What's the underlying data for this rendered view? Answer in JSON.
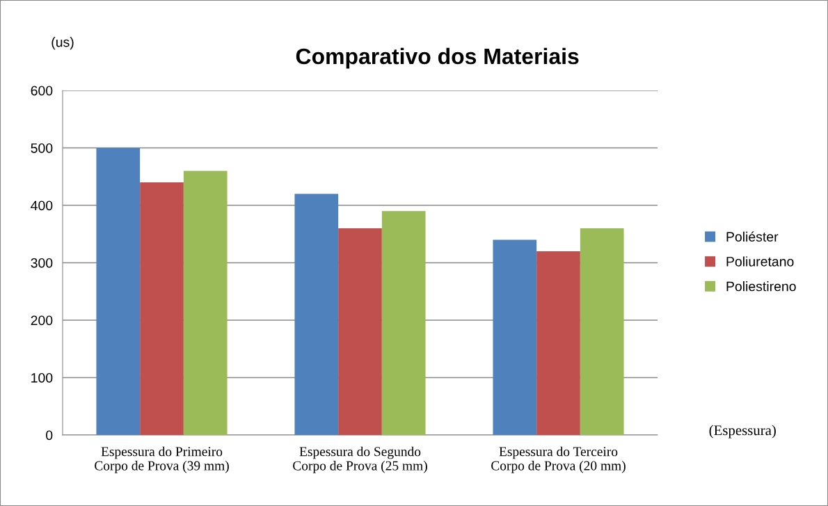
{
  "chart_data": {
    "type": "bar",
    "title": "Comparativo dos Materiais",
    "ylabel": "(us)",
    "xlabel": "(Espessura)",
    "categories": [
      "Espessura do Primeiro\nCorpo de Prova (39 mm)",
      "Espessura do Segundo\nCorpo de Prova (25 mm)",
      "Espessura do Terceiro\nCorpo de Prova (20 mm)"
    ],
    "series": [
      {
        "name": "Poliéster",
        "color": "#4f81bd",
        "values": [
          500,
          420,
          340
        ]
      },
      {
        "name": "Poliuretano",
        "color": "#c0504d",
        "values": [
          440,
          360,
          320
        ]
      },
      {
        "name": "Poliestireno",
        "color": "#9bbb59",
        "values": [
          460,
          390,
          360
        ]
      }
    ],
    "ylim": [
      0,
      600
    ],
    "yticks": [
      0,
      100,
      200,
      300,
      400,
      500,
      600
    ],
    "grid": "y",
    "legend": "right"
  }
}
